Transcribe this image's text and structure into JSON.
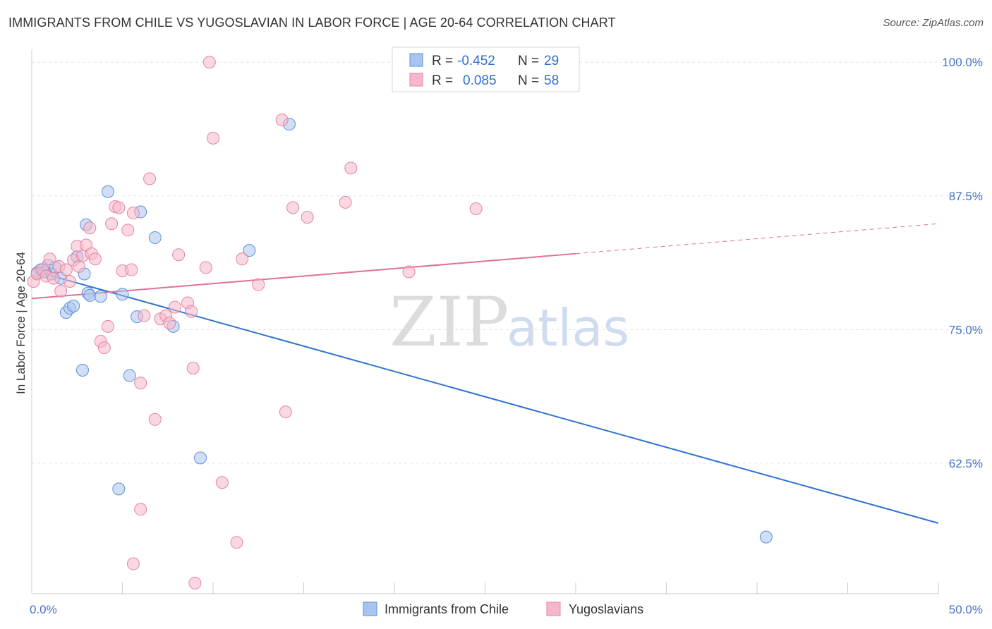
{
  "header": {
    "title": "IMMIGRANTS FROM CHILE VS YUGOSLAVIAN IN LABOR FORCE | AGE 20-64 CORRELATION CHART",
    "source": "Source: ZipAtlas.com"
  },
  "watermark": {
    "zip": "ZIP",
    "atlas": "atlas"
  },
  "legend_box": {
    "rows": [
      {
        "r_label": "R =",
        "r_value": "-0.452",
        "n_label": "N =",
        "n_value": "29",
        "color": "#a9c4ee"
      },
      {
        "r_label": "R =",
        "r_value": "0.085",
        "n_label": "N =",
        "n_value": "58",
        "color": "#f5b8cb"
      }
    ]
  },
  "chart_data": {
    "type": "scatter",
    "title": "IMMIGRANTS FROM CHILE VS YUGOSLAVIAN IN LABOR FORCE | AGE 20-64 CORRELATION CHART",
    "xlabel": "",
    "ylabel": "In Labor Force | Age 20-64",
    "xlim": [
      0,
      50
    ],
    "ylim": [
      50.3,
      101.2
    ],
    "x_tick_labels": [
      {
        "value": 0,
        "label": "0.0%"
      },
      {
        "value": 50,
        "label": "50.0%"
      }
    ],
    "y_tick_labels": [
      {
        "value": 100,
        "label": "100.0%"
      },
      {
        "value": 87.5,
        "label": "87.5%"
      },
      {
        "value": 75,
        "label": "75.0%"
      },
      {
        "value": 62.5,
        "label": "62.5%"
      }
    ],
    "x_minor_ticks": [
      0,
      5,
      10,
      15,
      20,
      25,
      30,
      35,
      40,
      45,
      50
    ],
    "grid": true,
    "legend_position": "top-center",
    "series": [
      {
        "name": "Immigrants from Chile",
        "color": "#a9c4ee",
        "edge": "#5b8fd8",
        "line_color": "#2f72d0",
        "trend": {
          "x": [
            0.3,
            50
          ],
          "y": [
            80.4,
            56.9
          ]
        },
        "points": [
          [
            0.3,
            80.3
          ],
          [
            0.5,
            80.6
          ],
          [
            0.7,
            80.4
          ],
          [
            0.9,
            81.0
          ],
          [
            1.1,
            80.2
          ],
          [
            1.3,
            80.8
          ],
          [
            1.6,
            79.8
          ],
          [
            1.9,
            76.6
          ],
          [
            2.1,
            77.0
          ],
          [
            2.3,
            77.2
          ],
          [
            2.5,
            81.8
          ],
          [
            2.9,
            80.2
          ],
          [
            3.1,
            78.4
          ],
          [
            2.8,
            71.2
          ],
          [
            3.0,
            84.8
          ],
          [
            3.2,
            78.2
          ],
          [
            3.8,
            78.1
          ],
          [
            4.2,
            87.9
          ],
          [
            4.8,
            60.1
          ],
          [
            5.0,
            78.3
          ],
          [
            5.4,
            70.7
          ],
          [
            5.8,
            76.2
          ],
          [
            6.0,
            86.0
          ],
          [
            6.8,
            83.6
          ],
          [
            7.8,
            75.3
          ],
          [
            9.3,
            63.0
          ],
          [
            12.0,
            82.4
          ],
          [
            14.2,
            94.2
          ],
          [
            40.5,
            55.6
          ]
        ]
      },
      {
        "name": "Yugoslavians",
        "color": "#f5b8cb",
        "edge": "#e8839f",
        "line_color": "#e07098",
        "trend": {
          "x": [
            0,
            30
          ],
          "y": [
            77.9,
            82.1
          ]
        },
        "trend_dashed": {
          "x": [
            30,
            50
          ],
          "y": [
            82.1,
            84.9
          ]
        },
        "points": [
          [
            0.1,
            79.5
          ],
          [
            0.3,
            80.2
          ],
          [
            0.6,
            80.6
          ],
          [
            0.8,
            80.0
          ],
          [
            1.0,
            81.6
          ],
          [
            1.2,
            79.8
          ],
          [
            1.5,
            80.9
          ],
          [
            1.6,
            78.6
          ],
          [
            1.9,
            80.6
          ],
          [
            2.1,
            79.5
          ],
          [
            2.3,
            81.5
          ],
          [
            2.6,
            80.9
          ],
          [
            2.8,
            81.9
          ],
          [
            2.5,
            82.8
          ],
          [
            3.0,
            82.9
          ],
          [
            3.3,
            82.1
          ],
          [
            3.5,
            81.6
          ],
          [
            3.2,
            84.5
          ],
          [
            3.8,
            73.9
          ],
          [
            4.0,
            73.3
          ],
          [
            4.2,
            75.3
          ],
          [
            4.4,
            84.9
          ],
          [
            4.6,
            86.5
          ],
          [
            4.8,
            86.4
          ],
          [
            5.0,
            80.5
          ],
          [
            5.3,
            84.3
          ],
          [
            5.6,
            85.9
          ],
          [
            5.5,
            80.6
          ],
          [
            6.0,
            70.0
          ],
          [
            6.2,
            76.3
          ],
          [
            6.5,
            89.1
          ],
          [
            6.8,
            66.6
          ],
          [
            7.1,
            76.0
          ],
          [
            7.4,
            76.3
          ],
          [
            7.6,
            75.6
          ],
          [
            7.9,
            77.1
          ],
          [
            8.1,
            82.0
          ],
          [
            8.6,
            77.5
          ],
          [
            8.8,
            76.7
          ],
          [
            8.9,
            71.4
          ],
          [
            9.6,
            80.8
          ],
          [
            9.8,
            100.0
          ],
          [
            10.0,
            92.9
          ],
          [
            10.5,
            60.7
          ],
          [
            11.3,
            55.1
          ],
          [
            11.6,
            81.6
          ],
          [
            12.5,
            79.2
          ],
          [
            13.8,
            94.6
          ],
          [
            14.0,
            67.3
          ],
          [
            14.4,
            86.4
          ],
          [
            15.2,
            85.5
          ],
          [
            17.3,
            86.9
          ],
          [
            17.6,
            90.1
          ],
          [
            20.8,
            80.4
          ],
          [
            24.5,
            86.3
          ],
          [
            6.0,
            58.2
          ],
          [
            5.6,
            53.1
          ],
          [
            9.0,
            51.3
          ]
        ]
      }
    ]
  }
}
